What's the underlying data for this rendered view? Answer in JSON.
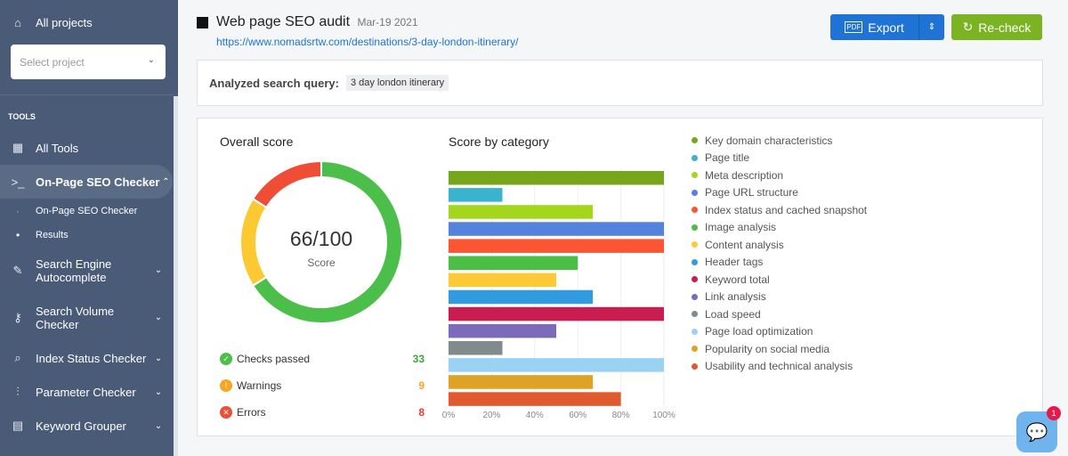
{
  "sidebar": {
    "all_projects": "All projects",
    "select_placeholder": "Select project",
    "tools_heading": "TOOLS",
    "items": [
      {
        "label": "All Tools"
      },
      {
        "label": "On-Page SEO Checker"
      },
      {
        "label": "Search Engine Autocomplete"
      },
      {
        "label": "Search Volume Checker"
      },
      {
        "label": "Index Status Checker"
      },
      {
        "label": "Parameter Checker"
      },
      {
        "label": "Keyword Grouper"
      }
    ],
    "subitems": [
      {
        "label": "On-Page SEO Checker"
      },
      {
        "label": "Results"
      }
    ]
  },
  "header": {
    "title": "Web page SEO audit",
    "date": "Mar-19 2021",
    "url": "https://www.nomadsrtw.com/destinations/3-day-london-itinerary/",
    "export": "Export",
    "recheck": "Re-check",
    "pdf": "PDF"
  },
  "query": {
    "label": "Analyzed search query:",
    "value": "3 day london itinerary"
  },
  "overall": {
    "title": "Overall score",
    "score": "66/100",
    "score_label": "Score",
    "passed_label": "Checks passed",
    "passed": "33",
    "warnings_label": "Warnings",
    "warnings": "9",
    "errors_label": "Errors",
    "errors": "8"
  },
  "chat_badge": "1",
  "chart_data": [
    {
      "type": "pie",
      "title": "Overall score",
      "slices": [
        {
          "name": "Checks passed",
          "value": 33,
          "color": "#4cbf4a"
        },
        {
          "name": "Warnings",
          "value": 9,
          "color": "#fdc933"
        },
        {
          "name": "Errors",
          "value": 8,
          "color": "#f04d37"
        }
      ]
    },
    {
      "type": "bar",
      "title": "Score by category",
      "xlim": [
        0,
        100
      ],
      "ticks": [
        "0%",
        "20%",
        "40%",
        "60%",
        "80%",
        "100%"
      ],
      "categories": [
        "Key domain characteristics",
        "Page title",
        "Meta description",
        "Page URL structure",
        "Index status and cached snapshot",
        "Image analysis",
        "Content analysis",
        "Header tags",
        "Keyword total",
        "Link analysis",
        "Load speed",
        "Page load optimization",
        "Popularity on social media",
        "Usability and technical analysis"
      ],
      "values": [
        100,
        25,
        67,
        100,
        100,
        60,
        50,
        67,
        100,
        50,
        25,
        100,
        67,
        80
      ],
      "colors": [
        "#77a61c",
        "#3ab3cf",
        "#a5d61e",
        "#5383dc",
        "#fb5534",
        "#4bbe45",
        "#fdc935",
        "#329be0",
        "#c91c50",
        "#7c6bba",
        "#808a8f",
        "#9ad2f4",
        "#dea325",
        "#e05a2f"
      ]
    }
  ]
}
